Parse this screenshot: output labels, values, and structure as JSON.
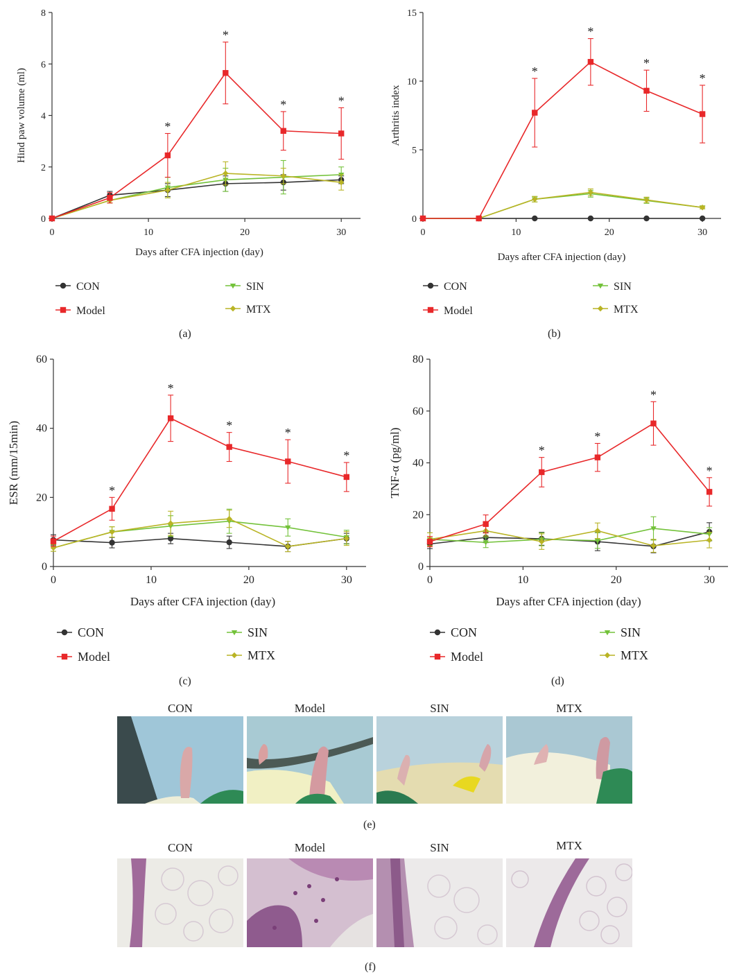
{
  "colors": {
    "CON": "#333333",
    "Model": "#e8282a",
    "SIN": "#73c23a",
    "MTX": "#b9b425",
    "axis": "#333333"
  },
  "legend": {
    "CON": "CON",
    "Model": "Model",
    "SIN": "SIN",
    "MTX": "MTX"
  },
  "chart_data": [
    {
      "type": "line",
      "panel": "(a)",
      "xlabel": "Days after CFA injection (day)",
      "ylabel": "Hind paw volume (ml)",
      "xlim": [
        0,
        32
      ],
      "ylim": [
        0,
        8
      ],
      "xticks": [
        "0",
        "10",
        "20",
        "30"
      ],
      "yticks": [
        "0",
        "2",
        "4",
        "6",
        "8"
      ],
      "x": [
        0,
        6,
        12,
        18,
        24,
        30
      ],
      "series": [
        {
          "name": "CON",
          "values": [
            0,
            0.9,
            1.1,
            1.35,
            1.4,
            1.5
          ],
          "errors": [
            0,
            0.15,
            0.25,
            0.3,
            0.3,
            0.15
          ],
          "marker": "circle"
        },
        {
          "name": "Model",
          "values": [
            0,
            0.8,
            2.45,
            5.65,
            3.4,
            3.3
          ],
          "errors": [
            0,
            0.2,
            0.85,
            1.2,
            0.75,
            1.0
          ],
          "marker": "square"
        },
        {
          "name": "SIN",
          "values": [
            0,
            0.7,
            1.2,
            1.5,
            1.6,
            1.7
          ],
          "errors": [
            0,
            0.1,
            0.4,
            0.45,
            0.65,
            0.3
          ],
          "marker": "triangle"
        },
        {
          "name": "MTX",
          "values": [
            0,
            0.7,
            1.1,
            1.75,
            1.65,
            1.4
          ],
          "errors": [
            0,
            0.1,
            0.3,
            0.45,
            0.3,
            0.3
          ],
          "marker": "diamond"
        }
      ],
      "annotations": [
        {
          "x": 12,
          "text": "*"
        },
        {
          "x": 18,
          "text": "*"
        },
        {
          "x": 24,
          "text": "*"
        },
        {
          "x": 30,
          "text": "*"
        }
      ]
    },
    {
      "type": "line",
      "panel": "(b)",
      "xlabel": "Days after CFA injection (day)",
      "ylabel": "Arthritis index",
      "xlim": [
        0,
        32
      ],
      "ylim": [
        0,
        15
      ],
      "xticks": [
        "0",
        "10",
        "20",
        "30"
      ],
      "yticks": [
        "0",
        "5",
        "10",
        "15"
      ],
      "x": [
        0,
        6,
        12,
        18,
        24,
        30
      ],
      "series": [
        {
          "name": "CON",
          "values": [
            0,
            0,
            0,
            0,
            0,
            0
          ],
          "errors": [
            0,
            0,
            0,
            0,
            0,
            0
          ],
          "marker": "circle"
        },
        {
          "name": "Model",
          "values": [
            0,
            0,
            7.7,
            11.4,
            9.3,
            7.6
          ],
          "errors": [
            0,
            0,
            2.5,
            1.7,
            1.5,
            2.1
          ],
          "marker": "square"
        },
        {
          "name": "SIN",
          "values": [
            0,
            0,
            1.4,
            1.8,
            1.3,
            0.8
          ],
          "errors": [
            0,
            0,
            0.2,
            0.25,
            0.2,
            0.1
          ],
          "marker": "triangle"
        },
        {
          "name": "MTX",
          "values": [
            0,
            0,
            1.4,
            1.9,
            1.35,
            0.8
          ],
          "errors": [
            0,
            0,
            0.2,
            0.25,
            0.2,
            0.1
          ],
          "marker": "diamond"
        }
      ],
      "annotations": [
        {
          "x": 12,
          "text": "*"
        },
        {
          "x": 18,
          "text": "*"
        },
        {
          "x": 24,
          "text": "*"
        },
        {
          "x": 30,
          "text": "*"
        }
      ]
    },
    {
      "type": "line",
      "panel": "(c)",
      "xlabel": "Days after CFA injection (day)",
      "ylabel": "ESR (mm/15min)",
      "xlim": [
        0,
        32
      ],
      "ylim": [
        0,
        60
      ],
      "xticks": [
        "0",
        "10",
        "20",
        "30"
      ],
      "yticks": [
        "0",
        "20",
        "40",
        "60"
      ],
      "x": [
        0,
        6,
        12,
        18,
        24,
        30
      ],
      "series": [
        {
          "name": "CON",
          "values": [
            7.7,
            6.9,
            8.1,
            7.0,
            5.8,
            8.1
          ],
          "errors": [
            1.5,
            1.5,
            1.5,
            1.8,
            1.5,
            1.5
          ],
          "marker": "circle"
        },
        {
          "name": "Model",
          "values": [
            7.3,
            16.7,
            42.9,
            34.6,
            30.4,
            25.9
          ],
          "errors": [
            1.5,
            3.3,
            6.7,
            4.2,
            6.3,
            4.2
          ],
          "marker": "square"
        },
        {
          "name": "SIN",
          "values": [
            5.4,
            10.0,
            11.7,
            13.1,
            11.3,
            8.5
          ],
          "errors": [
            1.0,
            1.5,
            3.0,
            3.5,
            2.5,
            2.0
          ],
          "marker": "triangle"
        },
        {
          "name": "MTX",
          "values": [
            5.4,
            10.0,
            12.5,
            13.8,
            5.8,
            8.1
          ],
          "errors": [
            1.0,
            1.5,
            3.5,
            2.5,
            1.5,
            2.0
          ],
          "marker": "diamond"
        }
      ],
      "annotations": [
        {
          "x": 6,
          "text": "*"
        },
        {
          "x": 12,
          "text": "*"
        },
        {
          "x": 18,
          "text": "*"
        },
        {
          "x": 24,
          "text": "*"
        },
        {
          "x": 30,
          "text": "*"
        }
      ]
    },
    {
      "type": "line",
      "panel": "(d)",
      "xlabel": "Days after CFA injection (day)",
      "ylabel": "TNF-α (pg/ml)",
      "xlim": [
        0,
        32
      ],
      "ylim": [
        0,
        80
      ],
      "xticks": [
        "0",
        "10",
        "20",
        "30"
      ],
      "yticks": [
        "0",
        "20",
        "40",
        "60",
        "80"
      ],
      "x": [
        0,
        6,
        12,
        18,
        24,
        30
      ],
      "series": [
        {
          "name": "CON",
          "values": [
            8.7,
            11.2,
            10.7,
            9.6,
            7.8,
            13.4
          ],
          "errors": [
            1.8,
            2.0,
            2.5,
            3.5,
            2.5,
            3.5
          ],
          "marker": "circle"
        },
        {
          "name": "Model",
          "values": [
            9.6,
            16.4,
            36.4,
            42.1,
            55.2,
            28.8
          ],
          "errors": [
            2.0,
            3.5,
            5.7,
            5.4,
            8.4,
            5.5
          ],
          "marker": "square"
        },
        {
          "name": "SIN",
          "values": [
            10.5,
            9.3,
            10.5,
            10.0,
            14.7,
            12.5
          ],
          "errors": [
            2.5,
            2.0,
            2.5,
            3.0,
            4.5,
            2.5
          ],
          "marker": "triangle"
        },
        {
          "name": "MTX",
          "values": [
            10.5,
            13.8,
            9.6,
            13.8,
            8.0,
            10.2
          ],
          "errors": [
            2.5,
            2.0,
            3.0,
            3.0,
            2.5,
            3.0
          ],
          "marker": "diamond"
        }
      ],
      "annotations": [
        {
          "x": 12,
          "text": "*"
        },
        {
          "x": 18,
          "text": "*"
        },
        {
          "x": 24,
          "text": "*"
        },
        {
          "x": 30,
          "text": "*"
        }
      ]
    }
  ],
  "photos_e": {
    "panel": "(e)",
    "labels": [
      "CON",
      "Model",
      "SIN",
      "MTX"
    ]
  },
  "photos_f": {
    "panel": "(f)",
    "labels": [
      "CON",
      "Model",
      "SIN",
      "MTX"
    ]
  }
}
